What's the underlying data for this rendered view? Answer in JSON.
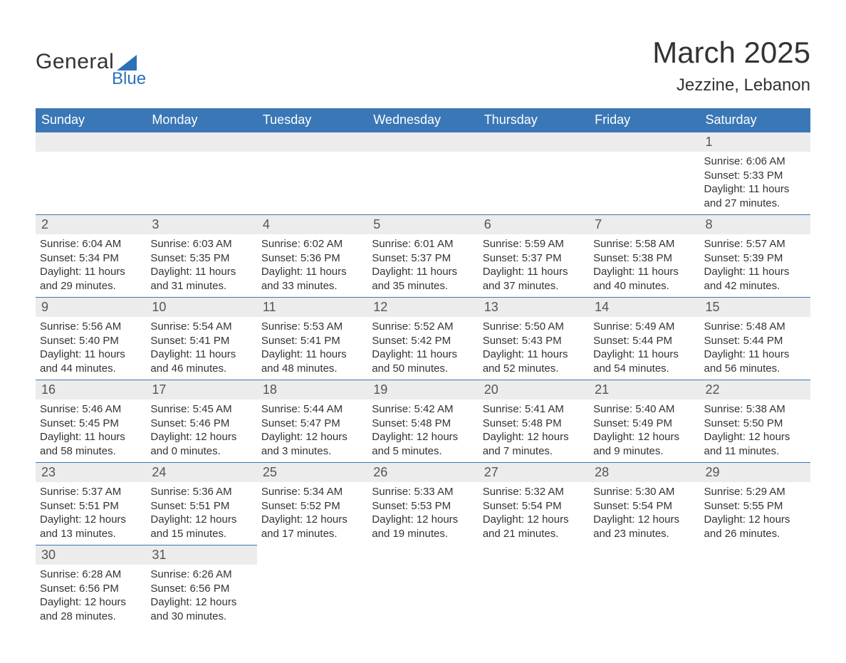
{
  "logo": {
    "main": "General",
    "sub": "Blue"
  },
  "title": "March 2025",
  "location": "Jezzine, Lebanon",
  "colors": {
    "header_bg": "#3a77b7",
    "header_text": "#ffffff",
    "daynum_bg": "#ececec",
    "row_border": "#3a77b7",
    "logo_accent": "#2c71b8",
    "body_text": "#333333",
    "background": "#ffffff"
  },
  "typography": {
    "month_title_fontsize": 42,
    "location_fontsize": 24,
    "weekday_fontsize": 18,
    "daynum_fontsize": 18,
    "detail_fontsize": 15
  },
  "layout": {
    "columns": 7,
    "rows": 6,
    "first_day_column_index": 6
  },
  "weekdays": [
    "Sunday",
    "Monday",
    "Tuesday",
    "Wednesday",
    "Thursday",
    "Friday",
    "Saturday"
  ],
  "weeks": [
    [
      null,
      null,
      null,
      null,
      null,
      null,
      {
        "day": "1",
        "sunrise": "Sunrise: 6:06 AM",
        "sunset": "Sunset: 5:33 PM",
        "daylight": "Daylight: 11 hours and 27 minutes."
      }
    ],
    [
      {
        "day": "2",
        "sunrise": "Sunrise: 6:04 AM",
        "sunset": "Sunset: 5:34 PM",
        "daylight": "Daylight: 11 hours and 29 minutes."
      },
      {
        "day": "3",
        "sunrise": "Sunrise: 6:03 AM",
        "sunset": "Sunset: 5:35 PM",
        "daylight": "Daylight: 11 hours and 31 minutes."
      },
      {
        "day": "4",
        "sunrise": "Sunrise: 6:02 AM",
        "sunset": "Sunset: 5:36 PM",
        "daylight": "Daylight: 11 hours and 33 minutes."
      },
      {
        "day": "5",
        "sunrise": "Sunrise: 6:01 AM",
        "sunset": "Sunset: 5:37 PM",
        "daylight": "Daylight: 11 hours and 35 minutes."
      },
      {
        "day": "6",
        "sunrise": "Sunrise: 5:59 AM",
        "sunset": "Sunset: 5:37 PM",
        "daylight": "Daylight: 11 hours and 37 minutes."
      },
      {
        "day": "7",
        "sunrise": "Sunrise: 5:58 AM",
        "sunset": "Sunset: 5:38 PM",
        "daylight": "Daylight: 11 hours and 40 minutes."
      },
      {
        "day": "8",
        "sunrise": "Sunrise: 5:57 AM",
        "sunset": "Sunset: 5:39 PM",
        "daylight": "Daylight: 11 hours and 42 minutes."
      }
    ],
    [
      {
        "day": "9",
        "sunrise": "Sunrise: 5:56 AM",
        "sunset": "Sunset: 5:40 PM",
        "daylight": "Daylight: 11 hours and 44 minutes."
      },
      {
        "day": "10",
        "sunrise": "Sunrise: 5:54 AM",
        "sunset": "Sunset: 5:41 PM",
        "daylight": "Daylight: 11 hours and 46 minutes."
      },
      {
        "day": "11",
        "sunrise": "Sunrise: 5:53 AM",
        "sunset": "Sunset: 5:41 PM",
        "daylight": "Daylight: 11 hours and 48 minutes."
      },
      {
        "day": "12",
        "sunrise": "Sunrise: 5:52 AM",
        "sunset": "Sunset: 5:42 PM",
        "daylight": "Daylight: 11 hours and 50 minutes."
      },
      {
        "day": "13",
        "sunrise": "Sunrise: 5:50 AM",
        "sunset": "Sunset: 5:43 PM",
        "daylight": "Daylight: 11 hours and 52 minutes."
      },
      {
        "day": "14",
        "sunrise": "Sunrise: 5:49 AM",
        "sunset": "Sunset: 5:44 PM",
        "daylight": "Daylight: 11 hours and 54 minutes."
      },
      {
        "day": "15",
        "sunrise": "Sunrise: 5:48 AM",
        "sunset": "Sunset: 5:44 PM",
        "daylight": "Daylight: 11 hours and 56 minutes."
      }
    ],
    [
      {
        "day": "16",
        "sunrise": "Sunrise: 5:46 AM",
        "sunset": "Sunset: 5:45 PM",
        "daylight": "Daylight: 11 hours and 58 minutes."
      },
      {
        "day": "17",
        "sunrise": "Sunrise: 5:45 AM",
        "sunset": "Sunset: 5:46 PM",
        "daylight": "Daylight: 12 hours and 0 minutes."
      },
      {
        "day": "18",
        "sunrise": "Sunrise: 5:44 AM",
        "sunset": "Sunset: 5:47 PM",
        "daylight": "Daylight: 12 hours and 3 minutes."
      },
      {
        "day": "19",
        "sunrise": "Sunrise: 5:42 AM",
        "sunset": "Sunset: 5:48 PM",
        "daylight": "Daylight: 12 hours and 5 minutes."
      },
      {
        "day": "20",
        "sunrise": "Sunrise: 5:41 AM",
        "sunset": "Sunset: 5:48 PM",
        "daylight": "Daylight: 12 hours and 7 minutes."
      },
      {
        "day": "21",
        "sunrise": "Sunrise: 5:40 AM",
        "sunset": "Sunset: 5:49 PM",
        "daylight": "Daylight: 12 hours and 9 minutes."
      },
      {
        "day": "22",
        "sunrise": "Sunrise: 5:38 AM",
        "sunset": "Sunset: 5:50 PM",
        "daylight": "Daylight: 12 hours and 11 minutes."
      }
    ],
    [
      {
        "day": "23",
        "sunrise": "Sunrise: 5:37 AM",
        "sunset": "Sunset: 5:51 PM",
        "daylight": "Daylight: 12 hours and 13 minutes."
      },
      {
        "day": "24",
        "sunrise": "Sunrise: 5:36 AM",
        "sunset": "Sunset: 5:51 PM",
        "daylight": "Daylight: 12 hours and 15 minutes."
      },
      {
        "day": "25",
        "sunrise": "Sunrise: 5:34 AM",
        "sunset": "Sunset: 5:52 PM",
        "daylight": "Daylight: 12 hours and 17 minutes."
      },
      {
        "day": "26",
        "sunrise": "Sunrise: 5:33 AM",
        "sunset": "Sunset: 5:53 PM",
        "daylight": "Daylight: 12 hours and 19 minutes."
      },
      {
        "day": "27",
        "sunrise": "Sunrise: 5:32 AM",
        "sunset": "Sunset: 5:54 PM",
        "daylight": "Daylight: 12 hours and 21 minutes."
      },
      {
        "day": "28",
        "sunrise": "Sunrise: 5:30 AM",
        "sunset": "Sunset: 5:54 PM",
        "daylight": "Daylight: 12 hours and 23 minutes."
      },
      {
        "day": "29",
        "sunrise": "Sunrise: 5:29 AM",
        "sunset": "Sunset: 5:55 PM",
        "daylight": "Daylight: 12 hours and 26 minutes."
      }
    ],
    [
      {
        "day": "30",
        "sunrise": "Sunrise: 6:28 AM",
        "sunset": "Sunset: 6:56 PM",
        "daylight": "Daylight: 12 hours and 28 minutes."
      },
      {
        "day": "31",
        "sunrise": "Sunrise: 6:26 AM",
        "sunset": "Sunset: 6:56 PM",
        "daylight": "Daylight: 12 hours and 30 minutes."
      },
      null,
      null,
      null,
      null,
      null
    ]
  ]
}
